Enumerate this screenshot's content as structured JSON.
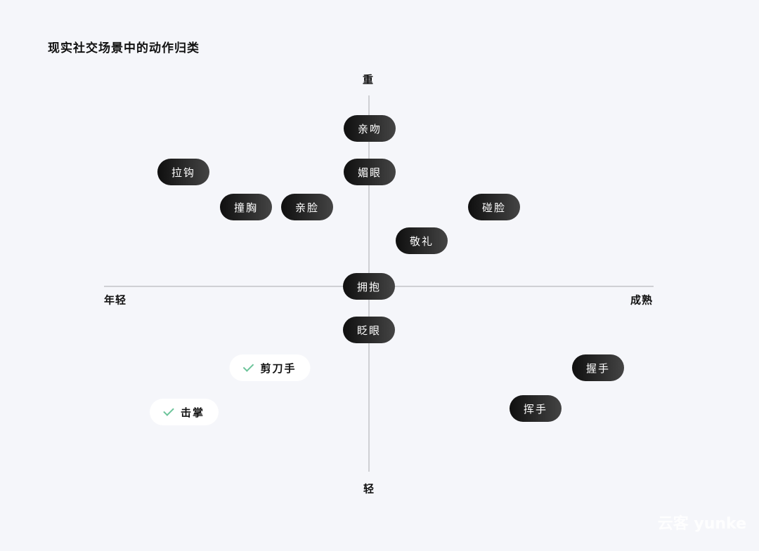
{
  "title": "现实社交场景中的动作归类",
  "axes": {
    "top": "重",
    "bottom": "轻",
    "left": "年轻",
    "right": "成熟"
  },
  "items": [
    {
      "label": "亲吻",
      "style": "dark"
    },
    {
      "label": "媚眼",
      "style": "dark"
    },
    {
      "label": "拉钩",
      "style": "dark"
    },
    {
      "label": "撞胸",
      "style": "dark"
    },
    {
      "label": "亲脸",
      "style": "dark"
    },
    {
      "label": "碰脸",
      "style": "dark"
    },
    {
      "label": "敬礼",
      "style": "dark"
    },
    {
      "label": "拥抱",
      "style": "dark"
    },
    {
      "label": "眨眼",
      "style": "dark"
    },
    {
      "label": "剪刀手",
      "style": "light",
      "checked": true
    },
    {
      "label": "击掌",
      "style": "light",
      "checked": true
    },
    {
      "label": "握手",
      "style": "dark"
    },
    {
      "label": "挥手",
      "style": "dark"
    }
  ],
  "colors": {
    "check": "#6cc49a",
    "pill_dark": "#111111",
    "background": "#f5f6fa"
  },
  "watermark": "云客 yunke"
}
